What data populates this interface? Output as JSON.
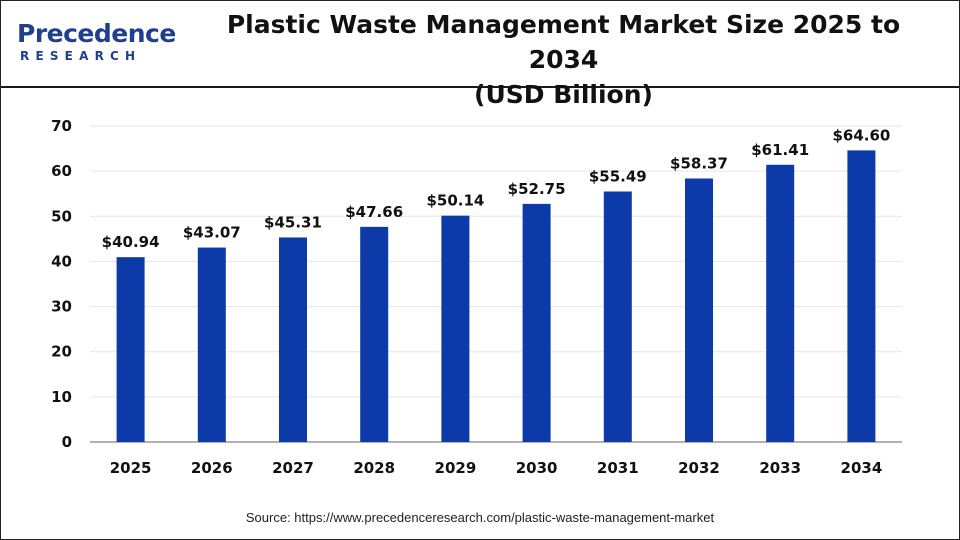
{
  "header": {
    "logo_main": "Precedence",
    "logo_sub": "RESEARCH",
    "title_line1": "Plastic Waste Management Market Size 2025 to 2034",
    "title_line2": "(USD Billion)"
  },
  "footer": {
    "source": "Source: https://www.precedenceresearch.com/plastic-waste-management-market"
  },
  "colors": {
    "bar": "#0d3aa9",
    "logo": "#1f3f8f",
    "grid": "#e6e6e6",
    "axis": "#999999"
  },
  "chart_data": {
    "type": "bar",
    "title": "Plastic Waste Management Market Size 2025 to 2034 (USD Billion)",
    "categories": [
      "2025",
      "2026",
      "2027",
      "2028",
      "2029",
      "2030",
      "2031",
      "2032",
      "2033",
      "2034"
    ],
    "values": [
      40.94,
      43.07,
      45.31,
      47.66,
      50.14,
      52.75,
      55.49,
      58.37,
      61.41,
      64.6
    ],
    "data_labels": [
      "$40.94",
      "$43.07",
      "$45.31",
      "$47.66",
      "$50.14",
      "$52.75",
      "$55.49",
      "$58.37",
      "$61.41",
      "$64.60"
    ],
    "yticks": [
      0,
      10,
      20,
      30,
      40,
      50,
      60,
      70
    ],
    "ylim": [
      0,
      70
    ],
    "xlabel": "",
    "ylabel": "",
    "grid": true,
    "legend": "none"
  }
}
